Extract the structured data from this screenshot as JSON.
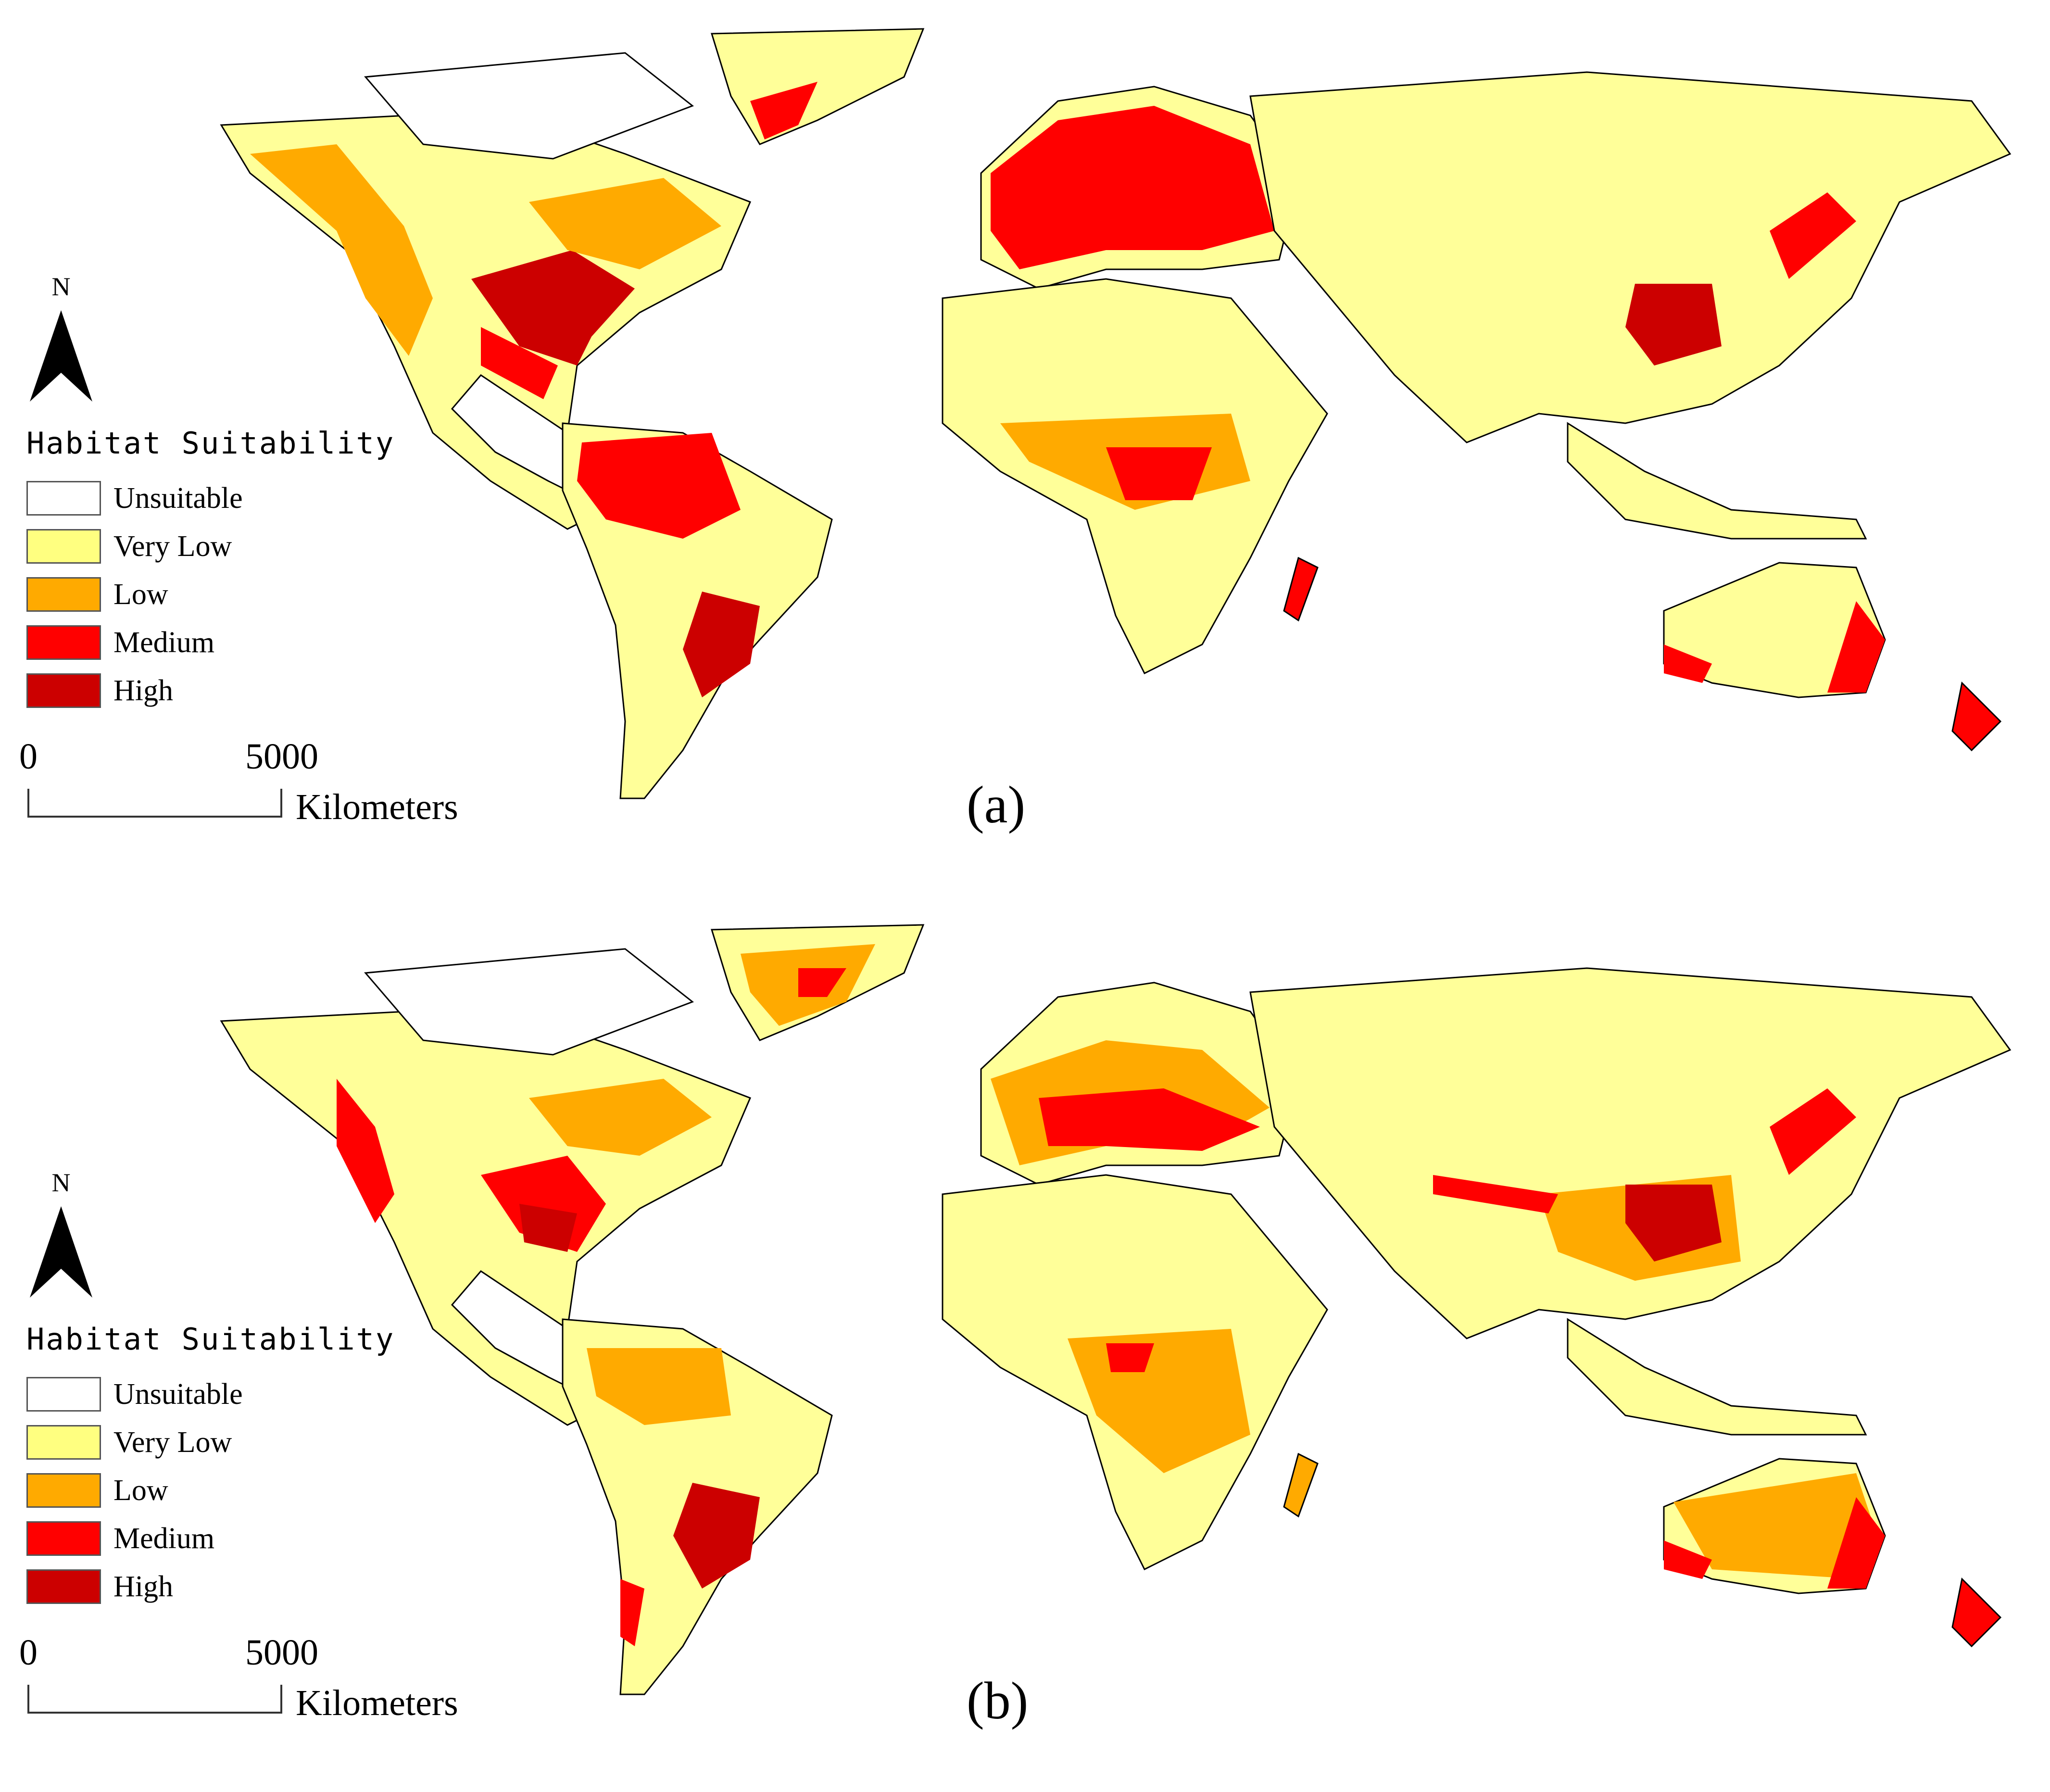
{
  "legend": {
    "title": "Habitat Suitability",
    "classes": [
      {
        "label": "Unsuitable",
        "color": "#ffffff"
      },
      {
        "label": "Very Low",
        "color": "#ffff80"
      },
      {
        "label": "Low",
        "color": "#ffaa00"
      },
      {
        "label": "Medium",
        "color": "#ff0000"
      },
      {
        "label": "High",
        "color": "#cc0000"
      }
    ]
  },
  "north_arrow": {
    "letter": "N"
  },
  "scale_bar": {
    "start": "0",
    "end": "5000",
    "unit": "Kilometers"
  },
  "panels": [
    {
      "id": "a",
      "label": "(a)"
    },
    {
      "id": "b",
      "label": "(b)"
    }
  ],
  "colors": {
    "unsuitable": "#ffffff",
    "very_low": "#ffff80",
    "low": "#ffaa00",
    "medium": "#ff0000",
    "high": "#cc0000",
    "border": "#000000"
  }
}
